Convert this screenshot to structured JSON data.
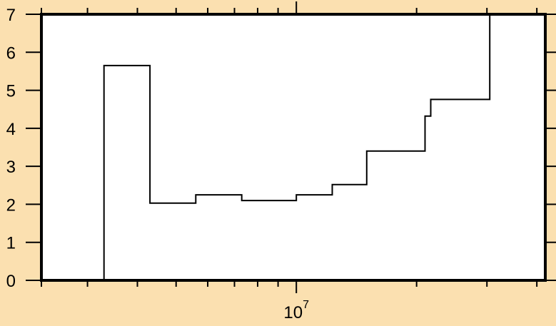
{
  "colors": {
    "background": "#fbe0b0",
    "plot_area": "#ffffff",
    "frame": "#000000",
    "line": "#000000"
  },
  "chart_data": {
    "type": "line",
    "step": true,
    "title": "",
    "xlabel": "",
    "ylabel": "",
    "x_scale": "log",
    "xlim": [
      2300000,
      42000000
    ],
    "ylim": [
      0,
      7
    ],
    "grid": false,
    "y_ticks": [
      {
        "value": 0,
        "label": "0"
      },
      {
        "value": 1,
        "label": "1"
      },
      {
        "value": 2,
        "label": "2"
      },
      {
        "value": 3,
        "label": "3"
      },
      {
        "value": 4,
        "label": "4"
      },
      {
        "value": 5,
        "label": "5"
      },
      {
        "value": 6,
        "label": "6"
      },
      {
        "value": 7,
        "label": "7"
      }
    ],
    "x_major_ticks": [
      {
        "value": 10000000,
        "base": "10",
        "exponent": "7"
      }
    ],
    "x_minor_ticks": [
      3000000,
      4000000,
      5000000,
      6000000,
      7000000,
      8000000,
      9000000,
      20000000,
      30000000,
      40000000
    ],
    "series": [
      {
        "x": [
          2300000,
          3300000,
          3300000,
          4300000,
          4300000,
          5600000,
          5600000,
          7300000,
          7300000,
          10000000,
          10000000,
          12300000,
          12300000,
          15000000,
          15000000,
          21000000,
          21000000,
          21700000,
          21700000,
          30500000,
          30500000,
          42000000
        ],
        "y": [
          0,
          0,
          5.65,
          5.65,
          2.03,
          2.03,
          2.25,
          2.25,
          2.1,
          2.1,
          2.25,
          2.25,
          2.52,
          2.52,
          3.4,
          3.4,
          4.32,
          4.32,
          4.76,
          4.76,
          7.0,
          7.0
        ]
      }
    ]
  }
}
